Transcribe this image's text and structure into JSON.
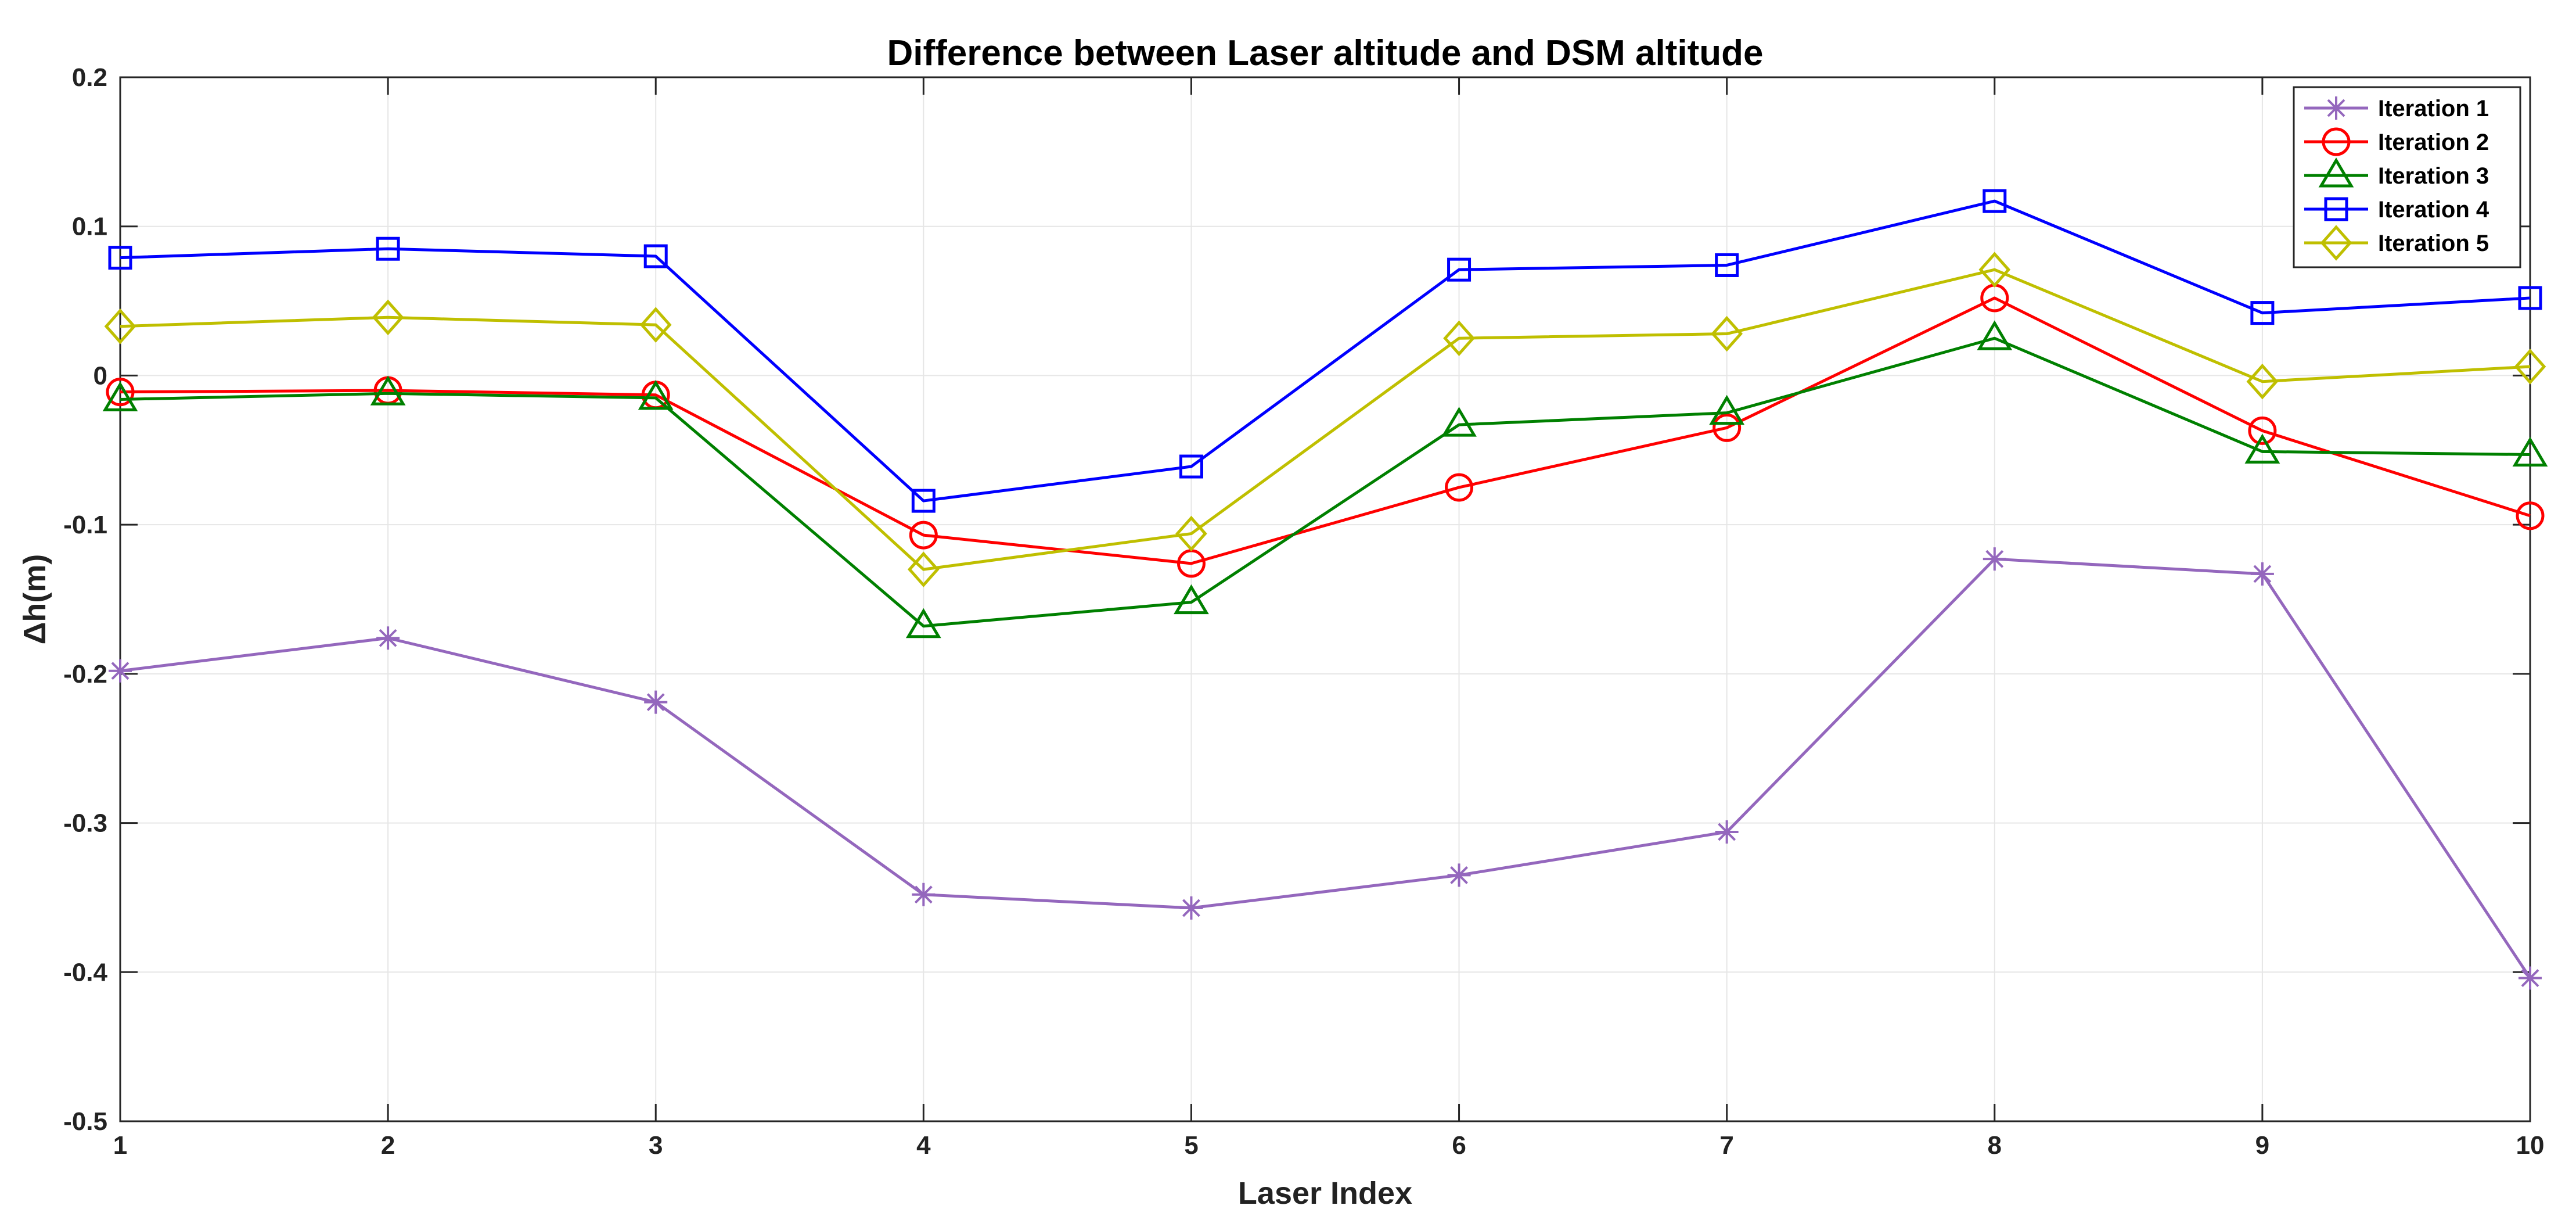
{
  "chart_data": {
    "type": "line",
    "title": "Difference between Laser altitude and DSM altitude",
    "xlabel": "Laser Index",
    "ylabel": "Δh(m)",
    "x": [
      1,
      2,
      3,
      4,
      5,
      6,
      7,
      8,
      9,
      10
    ],
    "xlim": [
      1,
      10
    ],
    "ylim": [
      -0.5,
      0.2
    ],
    "xticks": [
      "1",
      "2",
      "3",
      "4",
      "5",
      "6",
      "7",
      "8",
      "9",
      "10"
    ],
    "yticks": [
      "-0.5",
      "-0.4",
      "-0.3",
      "-0.2",
      "-0.1",
      "0",
      "0.1",
      "0.2"
    ],
    "grid": true,
    "legend_position": "top-right",
    "series": [
      {
        "name": "Iteration 1",
        "color": "#9467bd",
        "marker": "asterisk",
        "values": [
          -0.198,
          -0.176,
          -0.219,
          -0.348,
          -0.357,
          -0.335,
          -0.306,
          -0.123,
          -0.133,
          -0.404
        ]
      },
      {
        "name": "Iteration 2",
        "color": "#ff0000",
        "marker": "circle",
        "values": [
          -0.011,
          -0.01,
          -0.013,
          -0.107,
          -0.126,
          -0.075,
          -0.035,
          0.052,
          -0.037,
          -0.094
        ]
      },
      {
        "name": "Iteration 3",
        "color": "#008000",
        "marker": "triangle",
        "values": [
          -0.016,
          -0.012,
          -0.015,
          -0.168,
          -0.152,
          -0.033,
          -0.025,
          0.025,
          -0.051,
          -0.053
        ]
      },
      {
        "name": "Iteration 4",
        "color": "#0000ff",
        "marker": "square",
        "values": [
          0.079,
          0.085,
          0.08,
          -0.084,
          -0.061,
          0.071,
          0.074,
          0.117,
          0.042,
          0.052
        ]
      },
      {
        "name": "Iteration 5",
        "color": "#bfbf00",
        "marker": "diamond",
        "values": [
          0.033,
          0.039,
          0.034,
          -0.13,
          -0.106,
          0.025,
          0.028,
          0.071,
          -0.004,
          0.006
        ]
      }
    ]
  }
}
